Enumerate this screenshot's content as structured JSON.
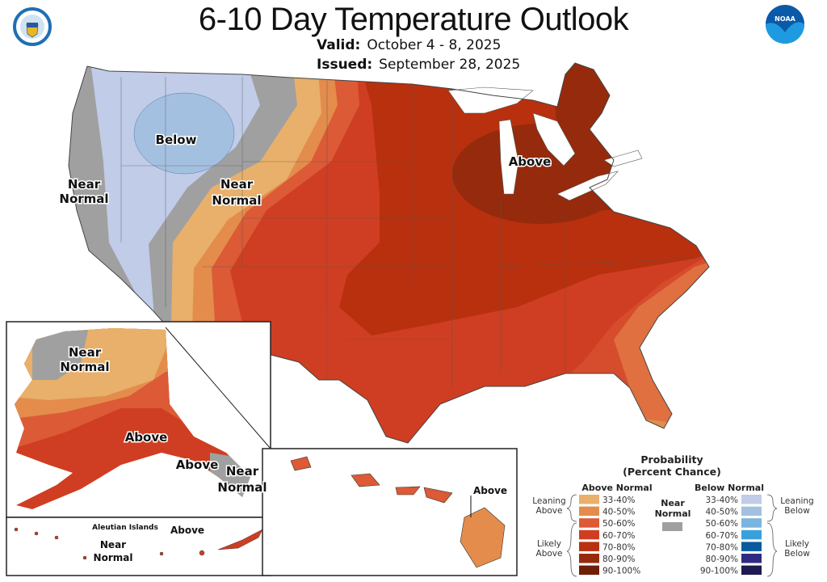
{
  "header": {
    "title": "6-10 Day Temperature Outlook",
    "valid_label": "Valid:",
    "valid_value": "October 4 - 8, 2025",
    "issued_label": "Issued:",
    "issued_value": "September 28, 2025"
  },
  "logos": {
    "left": "Department of Commerce seal",
    "right": "NOAA"
  },
  "map_labels": {
    "conus_below": "Below",
    "conus_near_normal_west": [
      "Near",
      "Normal"
    ],
    "conus_near_normal_central": [
      "Near",
      "Normal"
    ],
    "conus_above": "Above",
    "alaska_near_normal_north": [
      "Near",
      "Normal"
    ],
    "alaska_above": "Above",
    "alaska_above_southeast": "Above",
    "alaska_near_normal_southeast": [
      "Near",
      "Normal"
    ],
    "hawaii_above": "Above",
    "aleutian_title": "Aleutian Islands",
    "aleutian_above": "Above",
    "aleutian_near_normal": [
      "Near",
      "Normal"
    ]
  },
  "legend": {
    "title": [
      "Probability",
      "(Percent Chance)"
    ],
    "above_header": "Above Normal",
    "below_header": "Below Normal",
    "near_normal": [
      "Near",
      "Normal"
    ],
    "near_color": "#a0a0a0",
    "leaning_above": [
      "Leaning",
      "Above"
    ],
    "likely_above": [
      "Likely",
      "Above"
    ],
    "leaning_below": [
      "Leaning",
      "Below"
    ],
    "likely_below": [
      "Likely",
      "Below"
    ],
    "above": [
      {
        "range": "33-40%",
        "color": "#e8b06a"
      },
      {
        "range": "40-50%",
        "color": "#e48c4c"
      },
      {
        "range": "50-60%",
        "color": "#dc5a36"
      },
      {
        "range": "60-70%",
        "color": "#cf3e22"
      },
      {
        "range": "70-80%",
        "color": "#b8300e"
      },
      {
        "range": "80-90%",
        "color": "#962a0c"
      },
      {
        "range": "90-100%",
        "color": "#6e1e08"
      }
    ],
    "below": [
      {
        "range": "33-40%",
        "color": "#c0cce8"
      },
      {
        "range": "40-50%",
        "color": "#a4c0e0"
      },
      {
        "range": "50-60%",
        "color": "#7ab4e0"
      },
      {
        "range": "60-70%",
        "color": "#3aa0dc"
      },
      {
        "range": "70-80%",
        "color": "#0a5aa0"
      },
      {
        "range": "80-90%",
        "color": "#2e2a80"
      },
      {
        "range": "90-100%",
        "color": "#1e1a50"
      }
    ]
  }
}
